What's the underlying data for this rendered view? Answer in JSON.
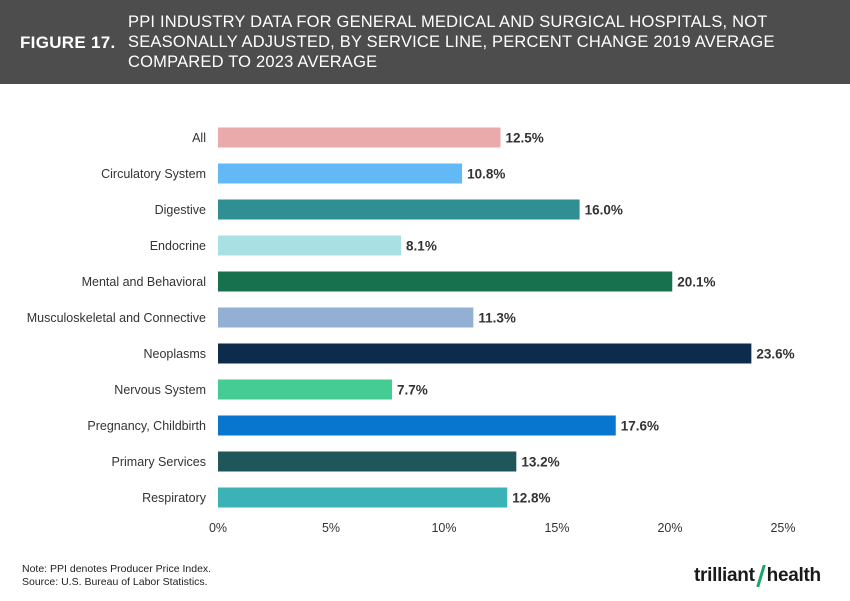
{
  "header": {
    "figure_label": "FIGURE 17.",
    "title": "PPI INDUSTRY DATA FOR GENERAL MEDICAL AND SURGICAL HOSPITALS, NOT SEASONALLY ADJUSTED, BY SERVICE LINE, PERCENT CHANGE 2019 AVERAGE COMPARED TO 2023 AVERAGE"
  },
  "chart_data": {
    "type": "bar",
    "orientation": "horizontal",
    "categories": [
      "All",
      "Circulatory System",
      "Digestive",
      "Endocrine",
      "Mental and Behavioral",
      "Musculoskeletal and Connective",
      "Neoplasms",
      "Nervous System",
      "Pregnancy, Childbirth",
      "Primary Services",
      "Respiratory"
    ],
    "values": [
      12.5,
      10.8,
      16.0,
      8.1,
      20.1,
      11.3,
      23.6,
      7.7,
      17.6,
      13.2,
      12.8
    ],
    "value_labels": [
      "12.5%",
      "10.8%",
      "16.0%",
      "8.1%",
      "20.1%",
      "11.3%",
      "23.6%",
      "7.7%",
      "17.6%",
      "13.2%",
      "12.8%"
    ],
    "colors": [
      "#eaa9ab",
      "#63b8f6",
      "#2f8f93",
      "#a9e0e4",
      "#17714e",
      "#93afd3",
      "#0d2b4a",
      "#45cc95",
      "#0876cf",
      "#1e5659",
      "#3bb2b5"
    ],
    "x_ticks": [
      0,
      5,
      10,
      15,
      20,
      25
    ],
    "x_tick_labels": [
      "0%",
      "5%",
      "10%",
      "15%",
      "20%",
      "25%"
    ],
    "xlim": [
      0,
      25
    ],
    "title": "",
    "xlabel": "",
    "ylabel": "",
    "grid": false
  },
  "footer": {
    "note": "Note: PPI denotes Producer Price Index.",
    "source": "Source: U.S. Bureau of Labor Statistics.",
    "logo_left": "trilliant",
    "logo_right": "health",
    "logo_accent": "#1aa36b"
  }
}
